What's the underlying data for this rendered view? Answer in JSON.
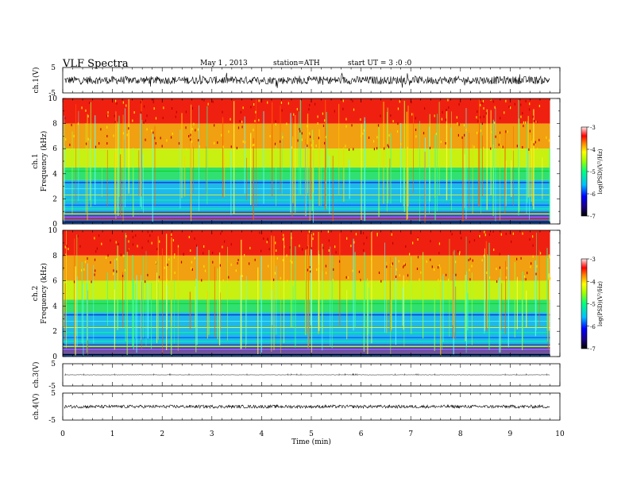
{
  "header": {
    "title": "VLF  Spectra",
    "date": "May 1   , 2013",
    "station": "station=ATH",
    "start": "start  UT  =    3  :0   :0"
  },
  "chart_data": [
    {
      "type": "line",
      "name": "ch1-timeseries",
      "ylabel": "ch.1(V)",
      "yticks": [
        "5",
        "-5"
      ],
      "ylim": [
        -5,
        5
      ],
      "xlim": [
        0,
        10
      ],
      "level": 0
    },
    {
      "type": "heatmap",
      "name": "ch1-spectrogram",
      "ylabel_top": "ch.1",
      "ylabel": "Frequency  (kHz)",
      "ylim": [
        0,
        10
      ],
      "yticks": [
        "0",
        "2",
        "4",
        "6",
        "8",
        "10"
      ],
      "xlim": [
        0,
        9.8
      ],
      "colorbar": {
        "label": "log(PSD)(V²/Hz)",
        "range": [
          -7,
          -3
        ],
        "ticks": [
          "-3",
          "-4",
          "-5",
          "-6",
          "-7"
        ]
      }
    },
    {
      "type": "heatmap",
      "name": "ch2-spectrogram",
      "ylabel_top": "ch.2",
      "ylabel": "Frequency  (kHz)",
      "ylim": [
        0,
        10
      ],
      "yticks": [
        "0",
        "2",
        "4",
        "6",
        "8",
        "10"
      ],
      "xlim": [
        0,
        9.8
      ],
      "colorbar": {
        "label": "log(PSD)(V²/Hz)",
        "range": [
          -7,
          -3
        ],
        "ticks": [
          "-3",
          "-4",
          "-5",
          "-6",
          "-7"
        ]
      }
    },
    {
      "type": "line",
      "name": "ch3-timeseries",
      "ylabel": "ch.3(V)",
      "yticks": [
        "5",
        "-5"
      ],
      "ylim": [
        -5,
        5
      ],
      "level": 0
    },
    {
      "type": "line",
      "name": "ch4-timeseries",
      "ylabel": "ch.4(V)",
      "yticks": [
        "5",
        "-5"
      ],
      "ylim": [
        -5,
        5
      ],
      "level": 0,
      "xlabel": "Time  (min)",
      "xticks": [
        "0",
        "1",
        "2",
        "3",
        "4",
        "5",
        "6",
        "7",
        "8",
        "9",
        "10"
      ]
    }
  ]
}
